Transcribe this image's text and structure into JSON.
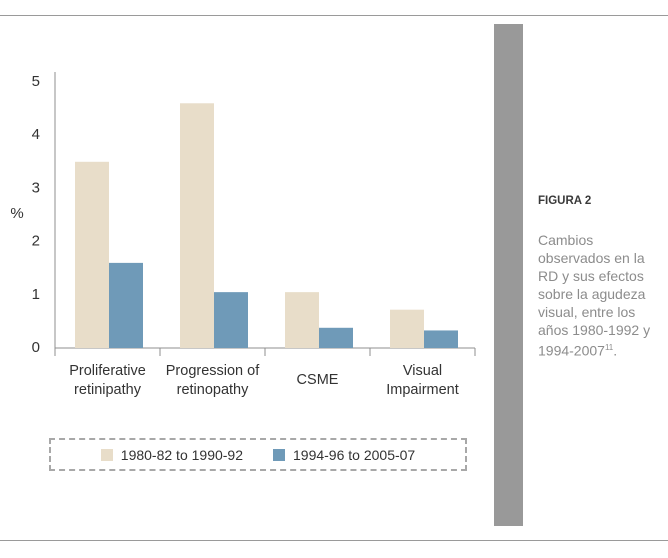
{
  "chart_data": {
    "type": "bar",
    "title": "",
    "xlabel": "",
    "ylabel": "%",
    "ylim": [
      0,
      5
    ],
    "yticks": [
      "0",
      "1",
      "2",
      "3",
      "4",
      "5"
    ],
    "categories": [
      [
        "Proliferative",
        "retinipathy"
      ],
      [
        "Progression of",
        "retinopathy"
      ],
      [
        "CSME"
      ],
      [
        "Visual",
        "Impairment"
      ]
    ],
    "series": [
      {
        "name": "1980-82 to 1990-92",
        "color": "#e8ddc9",
        "values": [
          3.5,
          4.6,
          1.05,
          0.72
        ]
      },
      {
        "name": "1994-96 to 2005-07",
        "color": "#6f9ab8",
        "values": [
          1.6,
          1.05,
          0.38,
          0.33
        ]
      }
    ],
    "grid": false,
    "legend_position": "bottom"
  },
  "caption": {
    "title": "FIGURA 2",
    "text": "Cambios observados en la RD y sus efectos sobre la agudeza visual, entre los años 1980-1992 y 1994-2007",
    "ref": "11",
    "end": "."
  }
}
